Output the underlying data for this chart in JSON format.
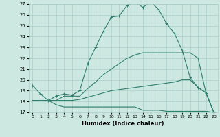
{
  "xlabel": "Humidex (Indice chaleur)",
  "ylabel": "",
  "xlim": [
    -0.5,
    23.5
  ],
  "ylim": [
    17,
    27
  ],
  "yticks": [
    17,
    18,
    19,
    20,
    21,
    22,
    23,
    24,
    25,
    26,
    27
  ],
  "xticks": [
    0,
    1,
    2,
    3,
    4,
    5,
    6,
    7,
    8,
    9,
    10,
    11,
    12,
    13,
    14,
    15,
    16,
    17,
    18,
    19,
    20,
    21,
    22,
    23
  ],
  "bg_color": "#cce8e0",
  "line_color": "#2e7d6e",
  "grid_color": "#aacfc7",
  "lines": [
    {
      "x": [
        0,
        1,
        2,
        3,
        4,
        5,
        6,
        7,
        8,
        9,
        10,
        11,
        12,
        13,
        14,
        15,
        16,
        17,
        18,
        19,
        20,
        21,
        22,
        23
      ],
      "y": [
        19.5,
        18.7,
        18.1,
        18.5,
        18.7,
        18.6,
        19.0,
        21.5,
        23.0,
        24.5,
        25.8,
        25.9,
        26.9,
        27.2,
        26.7,
        27.2,
        26.5,
        25.2,
        24.3,
        22.7,
        20.2,
        19.3,
        18.8,
        17.0
      ],
      "marker": "+"
    },
    {
      "x": [
        0,
        1,
        2,
        3,
        4,
        5,
        6,
        7,
        8,
        9,
        10,
        11,
        12,
        13,
        14,
        15,
        16,
        17,
        18,
        19,
        20,
        21,
        22,
        23
      ],
      "y": [
        18.1,
        18.1,
        18.1,
        18.1,
        18.5,
        18.5,
        18.5,
        19.2,
        19.8,
        20.5,
        21.0,
        21.5,
        22.0,
        22.3,
        22.5,
        22.5,
        22.5,
        22.5,
        22.5,
        22.5,
        22.5,
        22.0,
        18.8,
        17.0
      ],
      "marker": null
    },
    {
      "x": [
        0,
        1,
        2,
        3,
        4,
        5,
        6,
        7,
        8,
        9,
        10,
        11,
        12,
        13,
        14,
        15,
        16,
        17,
        18,
        19,
        20,
        21,
        22,
        23
      ],
      "y": [
        18.1,
        18.1,
        18.1,
        18.1,
        18.1,
        18.1,
        18.2,
        18.4,
        18.6,
        18.8,
        19.0,
        19.1,
        19.2,
        19.3,
        19.4,
        19.5,
        19.6,
        19.7,
        19.8,
        20.0,
        20.0,
        19.3,
        18.8,
        17.0
      ],
      "marker": null
    },
    {
      "x": [
        0,
        1,
        2,
        3,
        4,
        5,
        6,
        7,
        8,
        9,
        10,
        11,
        12,
        13,
        14,
        15,
        16,
        17,
        18,
        19,
        20,
        21,
        22,
        23
      ],
      "y": [
        18.1,
        18.1,
        18.1,
        17.7,
        17.5,
        17.5,
        17.5,
        17.5,
        17.5,
        17.5,
        17.5,
        17.5,
        17.5,
        17.5,
        17.2,
        17.2,
        17.2,
        17.1,
        17.1,
        17.1,
        17.1,
        17.1,
        17.1,
        17.0
      ],
      "marker": null
    }
  ]
}
